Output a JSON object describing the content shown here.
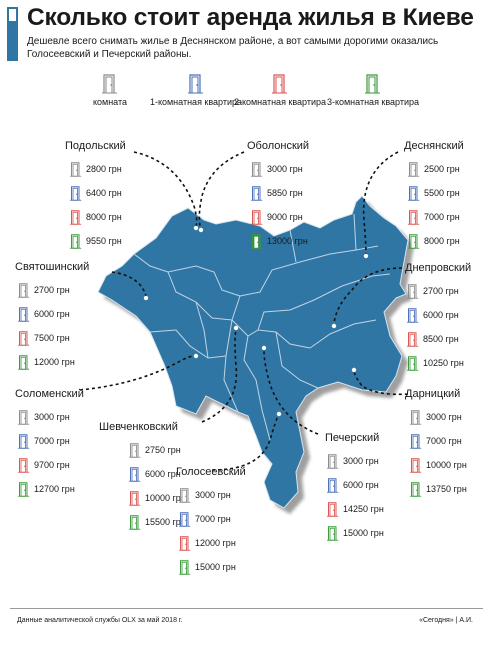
{
  "header": {
    "title": "Сколько стоит аренда жилья в Киеве",
    "subtitle": "Дешевле всего снимать жилье в Деснянском районе, а вот самыми дорогими оказались Голосеевский и Печерский районы."
  },
  "legend": [
    {
      "icon": "door-gray-icon",
      "label": "комната",
      "color": "#8a8a8a"
    },
    {
      "icon": "door-blue-icon",
      "label": "1-комнатная квартира",
      "color": "#4b6fb8"
    },
    {
      "icon": "door-red-icon",
      "label": "2-комнатная квартира",
      "color": "#d9534f"
    },
    {
      "icon": "door-green-icon",
      "label": "3-комнатная квартира",
      "color": "#3a9a3a"
    }
  ],
  "colors": {
    "map_fill": "#2f76a5",
    "district_border": "#bfd4e4",
    "shadow": "#8a8a8a",
    "accent_bar": "#2f76a5"
  },
  "districts": [
    {
      "name": "Подольский",
      "prices": [
        "2800 грн",
        "6400 грн",
        "8000 грн",
        "9550 грн"
      ]
    },
    {
      "name": "Оболонский",
      "prices": [
        "3000 грн",
        "5850 грн",
        "9000 грн",
        "13000 грн"
      ]
    },
    {
      "name": "Деснянский",
      "prices": [
        "2500 грн",
        "5500 грн",
        "7000 грн",
        "8000 грн"
      ]
    },
    {
      "name": "Святошинский",
      "prices": [
        "2700 грн",
        "6000 грн",
        "7500 грн",
        "12000 грн"
      ]
    },
    {
      "name": "Днепровский",
      "prices": [
        "2700 грн",
        "6000 грн",
        "8500 грн",
        "10250 грн"
      ]
    },
    {
      "name": "Соломенский",
      "prices": [
        "3000 грн",
        "7000 грн",
        "9700 грн",
        "12700 грн"
      ]
    },
    {
      "name": "Шевченковский",
      "prices": [
        "2750 грн",
        "6000 грн",
        "10000 грн",
        "15500 грн"
      ]
    },
    {
      "name": "Голосеевский",
      "prices": [
        "3000 грн",
        "7000 грн",
        "12000 грн",
        "15000 грн"
      ]
    },
    {
      "name": "Печерский",
      "prices": [
        "3000 грн",
        "6000 грн",
        "14250 грн",
        "15000 грн"
      ]
    },
    {
      "name": "Дарницкий",
      "prices": [
        "3000 грн",
        "7000 грн",
        "10000 грн",
        "13750 грн"
      ]
    }
  ],
  "footer": {
    "source": "Данные аналитической службы OLX за май 2018 г.",
    "credit": "«Сегодня» | А.И."
  }
}
